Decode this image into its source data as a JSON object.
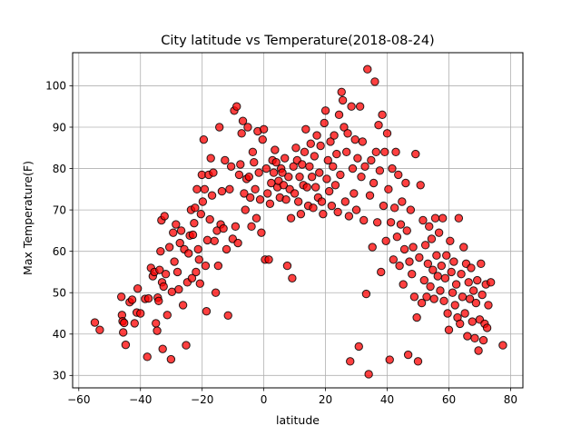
{
  "chart_data": {
    "type": "scatter",
    "title": "City latitude vs Temperature(2018-08-24)",
    "xlabel": "latitude",
    "ylabel": "Max Temperature(F)",
    "xlim": [
      -62,
      84
    ],
    "ylim": [
      27,
      108
    ],
    "xticks": [
      -60,
      -40,
      -20,
      0,
      20,
      40,
      60,
      80
    ],
    "yticks": [
      30,
      40,
      50,
      60,
      70,
      80,
      90,
      100
    ],
    "grid": true,
    "marker_color": "#ff0000",
    "marker_edge_color": "#000000",
    "marker_alpha": 0.75,
    "points": [
      [
        -54.8,
        42.8
      ],
      [
        -53.2,
        41.0
      ],
      [
        -46.2,
        49.0
      ],
      [
        -46.0,
        44.6
      ],
      [
        -45.8,
        43.1
      ],
      [
        -45.6,
        40.4
      ],
      [
        -45.3,
        42.7
      ],
      [
        -44.8,
        37.4
      ],
      [
        -43.5,
        47.7
      ],
      [
        -42.7,
        48.3
      ],
      [
        -41.9,
        42.6
      ],
      [
        -41.2,
        45.2
      ],
      [
        -40.9,
        51.0
      ],
      [
        -40.0,
        45.0
      ],
      [
        -38.5,
        48.5
      ],
      [
        -37.8,
        34.5
      ],
      [
        -37.4,
        48.6
      ],
      [
        -36.6,
        56.0
      ],
      [
        -36.0,
        54.0
      ],
      [
        -35.5,
        55.0
      ],
      [
        -35.0,
        42.6
      ],
      [
        -34.6,
        40.8
      ],
      [
        -34.4,
        48.8
      ],
      [
        -34.1,
        48.0
      ],
      [
        -33.8,
        55.5
      ],
      [
        -33.5,
        60.0
      ],
      [
        -33.2,
        67.5
      ],
      [
        -33.0,
        52.5
      ],
      [
        -32.8,
        36.4
      ],
      [
        -32.5,
        51.5
      ],
      [
        -32.2,
        68.5
      ],
      [
        -31.8,
        54.5
      ],
      [
        -31.3,
        44.6
      ],
      [
        -30.6,
        61.0
      ],
      [
        -30.1,
        33.9
      ],
      [
        -29.8,
        50.2
      ],
      [
        -29.4,
        64.5
      ],
      [
        -29.0,
        57.5
      ],
      [
        -28.5,
        66.5
      ],
      [
        -28.0,
        55.0
      ],
      [
        -27.6,
        50.8
      ],
      [
        -27.2,
        62.0
      ],
      [
        -26.8,
        65.0
      ],
      [
        -26.2,
        47.0
      ],
      [
        -25.8,
        60.5
      ],
      [
        -25.2,
        37.3
      ],
      [
        -24.8,
        52.5
      ],
      [
        -24.4,
        59.5
      ],
      [
        -24.0,
        63.8
      ],
      [
        -23.6,
        70.0
      ],
      [
        -23.3,
        53.5
      ],
      [
        -23.0,
        64.0
      ],
      [
        -22.6,
        66.8
      ],
      [
        -22.3,
        70.5
      ],
      [
        -22.0,
        55.0
      ],
      [
        -21.7,
        75.0
      ],
      [
        -21.3,
        60.5
      ],
      [
        -21.0,
        58.0
      ],
      [
        -20.7,
        52.2
      ],
      [
        -20.4,
        69.0
      ],
      [
        -20.1,
        78.5
      ],
      [
        -19.8,
        72.0
      ],
      [
        -19.5,
        87.0
      ],
      [
        -19.2,
        75.0
      ],
      [
        -18.9,
        56.5
      ],
      [
        -18.6,
        45.5
      ],
      [
        -18.3,
        62.7
      ],
      [
        -17.9,
        78.5
      ],
      [
        -17.5,
        67.7
      ],
      [
        -17.2,
        82.5
      ],
      [
        -16.8,
        73.5
      ],
      [
        -16.4,
        79.0
      ],
      [
        -16.0,
        62.5
      ],
      [
        -15.6,
        50.0
      ],
      [
        -15.2,
        65.0
      ],
      [
        -14.8,
        56.5
      ],
      [
        -14.4,
        90.0
      ],
      [
        -14.0,
        66.5
      ],
      [
        -13.6,
        74.5
      ],
      [
        -13.1,
        65.5
      ],
      [
        -12.6,
        82.0
      ],
      [
        -12.1,
        60.5
      ],
      [
        -11.6,
        44.5
      ],
      [
        -11.1,
        75.0
      ],
      [
        -10.6,
        80.5
      ],
      [
        -10.1,
        63.0
      ],
      [
        -9.6,
        94.0
      ],
      [
        -9.2,
        66.0
      ],
      [
        -8.8,
        95.0
      ],
      [
        -8.4,
        62.0
      ],
      [
        -8.0,
        78.5
      ],
      [
        -7.6,
        81.0
      ],
      [
        -7.2,
        88.5
      ],
      [
        -6.8,
        91.5
      ],
      [
        -6.4,
        74.0
      ],
      [
        -6.0,
        70.0
      ],
      [
        -5.6,
        77.5
      ],
      [
        -5.2,
        90.0
      ],
      [
        -4.8,
        78.0
      ],
      [
        -4.4,
        73.0
      ],
      [
        -4.0,
        66.0
      ],
      [
        -3.6,
        84.0
      ],
      [
        -3.2,
        81.5
      ],
      [
        -2.8,
        75.0
      ],
      [
        -2.4,
        68.0
      ],
      [
        -2.0,
        89.0
      ],
      [
        -1.6,
        79.0
      ],
      [
        -1.2,
        72.5
      ],
      [
        -0.8,
        64.5
      ],
      [
        -0.4,
        87.0
      ],
      [
        0.0,
        89.5
      ],
      [
        0.4,
        58.0
      ],
      [
        0.8,
        80.0
      ],
      [
        1.2,
        74.0
      ],
      [
        1.6,
        58.0
      ],
      [
        2.0,
        71.5
      ],
      [
        2.4,
        76.5
      ],
      [
        2.8,
        82.0
      ],
      [
        3.2,
        79.0
      ],
      [
        3.6,
        84.5
      ],
      [
        4.0,
        81.5
      ],
      [
        4.4,
        75.5
      ],
      [
        4.8,
        77.0
      ],
      [
        5.2,
        73.0
      ],
      [
        5.6,
        80.0
      ],
      [
        6.0,
        79.0
      ],
      [
        6.4,
        76.0
      ],
      [
        6.8,
        82.5
      ],
      [
        7.2,
        72.5
      ],
      [
        7.6,
        56.5
      ],
      [
        8.0,
        78.0
      ],
      [
        8.4,
        75.0
      ],
      [
        8.8,
        68.0
      ],
      [
        9.2,
        53.5
      ],
      [
        9.6,
        80.5
      ],
      [
        10.0,
        74.0
      ],
      [
        10.4,
        85.0
      ],
      [
        10.8,
        82.0
      ],
      [
        11.2,
        72.0
      ],
      [
        11.6,
        78.0
      ],
      [
        12.0,
        69.0
      ],
      [
        12.4,
        81.0
      ],
      [
        12.8,
        76.0
      ],
      [
        13.2,
        84.0
      ],
      [
        13.6,
        89.5
      ],
      [
        14.0,
        75.5
      ],
      [
        14.4,
        71.0
      ],
      [
        14.8,
        80.5
      ],
      [
        15.2,
        86.0
      ],
      [
        15.6,
        78.0
      ],
      [
        16.0,
        70.5
      ],
      [
        16.4,
        83.0
      ],
      [
        16.8,
        75.5
      ],
      [
        17.2,
        88.0
      ],
      [
        17.6,
        73.0
      ],
      [
        18.0,
        79.0
      ],
      [
        18.4,
        85.5
      ],
      [
        18.8,
        72.0
      ],
      [
        19.2,
        69.0
      ],
      [
        19.6,
        91.0
      ],
      [
        20.0,
        94.0
      ],
      [
        20.4,
        77.5
      ],
      [
        20.8,
        82.0
      ],
      [
        21.2,
        74.5
      ],
      [
        21.6,
        86.5
      ],
      [
        22.0,
        71.0
      ],
      [
        22.4,
        80.5
      ],
      [
        22.8,
        88.0
      ],
      [
        23.2,
        76.0
      ],
      [
        23.6,
        83.5
      ],
      [
        24.0,
        69.5
      ],
      [
        24.4,
        93.0
      ],
      [
        24.8,
        78.5
      ],
      [
        25.2,
        98.5
      ],
      [
        25.6,
        96.5
      ],
      [
        26.0,
        90.0
      ],
      [
        26.4,
        72.0
      ],
      [
        26.8,
        84.0
      ],
      [
        27.2,
        88.5
      ],
      [
        27.6,
        68.5
      ],
      [
        28.0,
        33.4
      ],
      [
        28.4,
        95.0
      ],
      [
        28.8,
        80.0
      ],
      [
        29.2,
        74.0
      ],
      [
        29.6,
        87.0
      ],
      [
        30.0,
        70.0
      ],
      [
        30.4,
        82.5
      ],
      [
        30.8,
        37.0
      ],
      [
        31.2,
        95.0
      ],
      [
        31.6,
        78.0
      ],
      [
        32.0,
        86.5
      ],
      [
        32.4,
        67.5
      ],
      [
        32.8,
        80.5
      ],
      [
        33.2,
        49.7
      ],
      [
        33.6,
        104.0
      ],
      [
        34.0,
        30.3
      ],
      [
        34.4,
        73.5
      ],
      [
        34.8,
        82.0
      ],
      [
        35.2,
        61.0
      ],
      [
        35.6,
        76.5
      ],
      [
        36.0,
        101.0
      ],
      [
        36.4,
        84.0
      ],
      [
        36.8,
        67.0
      ],
      [
        37.2,
        90.5
      ],
      [
        37.6,
        79.5
      ],
      [
        38.0,
        55.0
      ],
      [
        38.4,
        93.0
      ],
      [
        38.8,
        71.0
      ],
      [
        39.2,
        84.0
      ],
      [
        39.6,
        62.5
      ],
      [
        40.0,
        88.5
      ],
      [
        40.4,
        75.0
      ],
      [
        40.8,
        33.8
      ],
      [
        41.2,
        67.0
      ],
      [
        41.6,
        80.0
      ],
      [
        42.0,
        58.0
      ],
      [
        42.4,
        70.5
      ],
      [
        42.8,
        84.0
      ],
      [
        43.2,
        63.5
      ],
      [
        43.6,
        78.5
      ],
      [
        44.0,
        56.5
      ],
      [
        44.4,
        66.5
      ],
      [
        44.8,
        72.0
      ],
      [
        45.2,
        52.0
      ],
      [
        45.6,
        60.5
      ],
      [
        46.0,
        76.5
      ],
      [
        46.4,
        65.0
      ],
      [
        46.8,
        35.0
      ],
      [
        47.2,
        57.5
      ],
      [
        47.6,
        70.0
      ],
      [
        48.0,
        54.5
      ],
      [
        48.4,
        61.0
      ],
      [
        48.8,
        49.0
      ],
      [
        49.2,
        83.5
      ],
      [
        49.6,
        44.0
      ],
      [
        50.0,
        33.4
      ],
      [
        50.4,
        58.5
      ],
      [
        50.8,
        76.0
      ],
      [
        51.2,
        47.5
      ],
      [
        51.6,
        67.5
      ],
      [
        52.0,
        53.0
      ],
      [
        52.4,
        61.5
      ],
      [
        52.8,
        49.0
      ],
      [
        53.2,
        57.0
      ],
      [
        53.6,
        66.0
      ],
      [
        54.0,
        51.5
      ],
      [
        54.4,
        63.0
      ],
      [
        54.8,
        55.5
      ],
      [
        55.2,
        48.5
      ],
      [
        55.6,
        68.0
      ],
      [
        56.0,
        59.0
      ],
      [
        56.4,
        54.0
      ],
      [
        56.8,
        64.5
      ],
      [
        57.2,
        50.5
      ],
      [
        57.6,
        56.5
      ],
      [
        58.0,
        68.0
      ],
      [
        58.4,
        48.0
      ],
      [
        58.8,
        53.5
      ],
      [
        59.2,
        59.0
      ],
      [
        59.6,
        45.0
      ],
      [
        60.0,
        41.0
      ],
      [
        60.4,
        62.5
      ],
      [
        60.8,
        55.0
      ],
      [
        61.2,
        50.0
      ],
      [
        61.6,
        57.5
      ],
      [
        62.0,
        47.0
      ],
      [
        62.4,
        52.0
      ],
      [
        62.8,
        44.0
      ],
      [
        63.2,
        68.0
      ],
      [
        63.6,
        42.5
      ],
      [
        64.0,
        54.5
      ],
      [
        64.4,
        49.0
      ],
      [
        64.8,
        61.0
      ],
      [
        65.2,
        45.0
      ],
      [
        65.6,
        57.0
      ],
      [
        66.0,
        39.5
      ],
      [
        66.4,
        52.5
      ],
      [
        66.8,
        48.5
      ],
      [
        67.2,
        56.0
      ],
      [
        67.6,
        43.0
      ],
      [
        68.0,
        50.5
      ],
      [
        68.4,
        39.0
      ],
      [
        68.8,
        47.5
      ],
      [
        69.2,
        53.0
      ],
      [
        69.6,
        36.0
      ],
      [
        70.0,
        43.5
      ],
      [
        70.4,
        57.0
      ],
      [
        70.8,
        49.5
      ],
      [
        71.2,
        38.5
      ],
      [
        71.6,
        42.5
      ],
      [
        72.0,
        52.0
      ],
      [
        72.4,
        41.5
      ],
      [
        72.8,
        47.0
      ],
      [
        73.6,
        52.5
      ],
      [
        77.5,
        37.3
      ]
    ]
  }
}
